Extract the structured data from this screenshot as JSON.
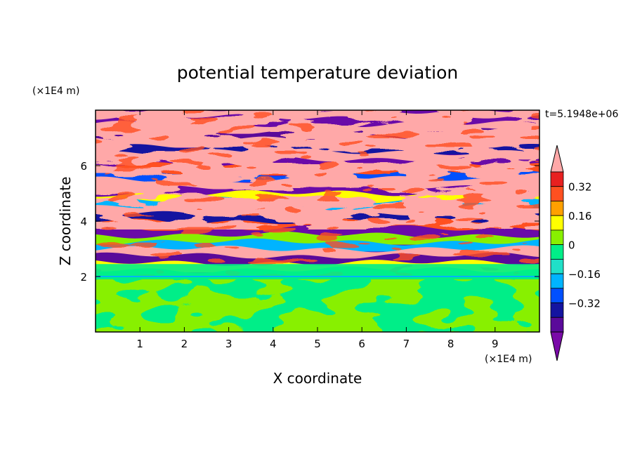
{
  "chart_data": {
    "type": "heatmap",
    "title": "potential temperature deviation",
    "time_label": "t=5.1948e+06",
    "xlabel": "X coordinate",
    "ylabel": "Z coordinate",
    "x_unit": "(×1E4 m)",
    "y_unit": "(×1E4 m)",
    "xlim": [
      0,
      10
    ],
    "ylim": [
      0,
      8
    ],
    "x_ticks": [
      "1",
      "2",
      "3",
      "4",
      "5",
      "6",
      "7",
      "8",
      "9"
    ],
    "y_ticks": [
      "2",
      "4",
      "6"
    ],
    "colorbar": {
      "levels": [
        -0.48,
        -0.4,
        -0.32,
        -0.24,
        -0.16,
        -0.08,
        0,
        0.08,
        0.16,
        0.24,
        0.32,
        0.4,
        0.48
      ],
      "tick_labels": [
        "0.32",
        "0.16",
        "0",
        "−0.16",
        "−0.32"
      ],
      "colors": [
        "#7a0aa8",
        "#5a0a9a",
        "#1414a0",
        "#0050ff",
        "#00b4ff",
        "#20e0c8",
        "#00ee88",
        "#88f000",
        "#ffff00",
        "#ffa000",
        "#ff5020",
        "#e82020",
        "#ffa8a8"
      ]
    },
    "description_fields": {
      "lower_layer": {
        "z_range": [
          0,
          2
        ],
        "values": [
          -0.08,
          0.08
        ]
      },
      "interface": {
        "z": 2
      },
      "upper_layer": {
        "z_range": [
          2,
          8
        ],
        "values": [
          -0.48,
          0.48
        ]
      }
    }
  }
}
